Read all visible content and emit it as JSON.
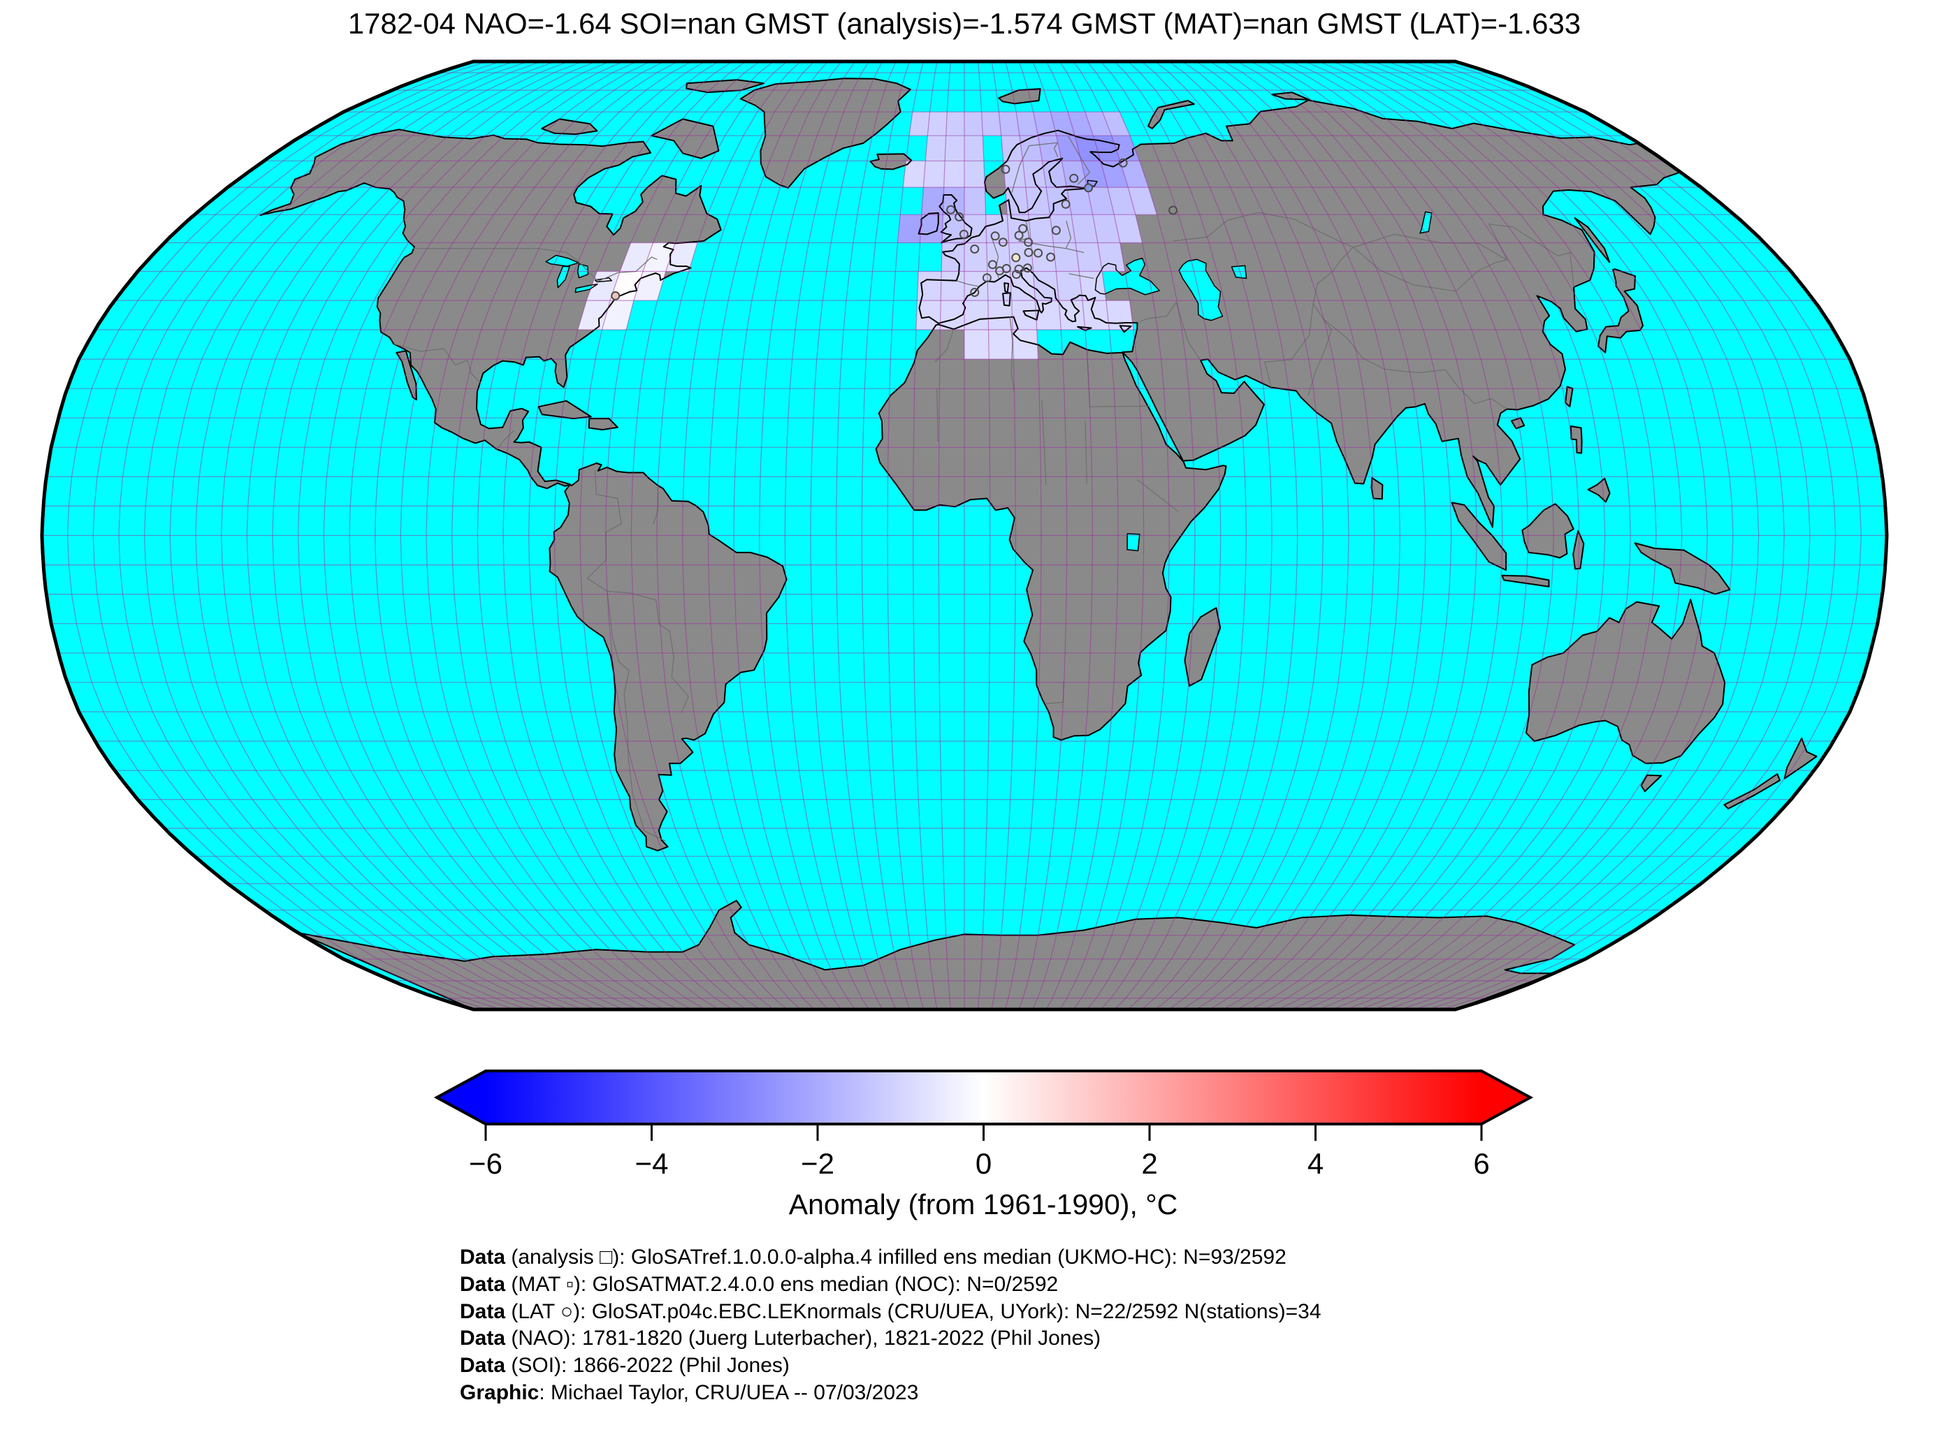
{
  "title": "1782-04 NAO=-1.64 SOI=nan GMST (analysis)=-1.574 GMST (MAT)=nan GMST (LAT)=-1.633",
  "colorbar": {
    "label": "Anomaly (from 1961-1990), °C",
    "vmin": -6,
    "vmax": 6,
    "colormap": "blue-white-red",
    "extend_left_color": "#0000ff",
    "extend_right_color": "#ff0000",
    "ticks": [
      {
        "value": -6,
        "label": "−6"
      },
      {
        "value": -4,
        "label": "−4"
      },
      {
        "value": -2,
        "label": "−2"
      },
      {
        "value": 0,
        "label": "0"
      },
      {
        "value": 2,
        "label": "2"
      },
      {
        "value": 4,
        "label": "4"
      },
      {
        "value": 6,
        "label": "6"
      }
    ]
  },
  "footer": {
    "lines": [
      {
        "label": "Data",
        "text": " (analysis □): GloSATref.1.0.0.0-alpha.4 infilled ens median (UKMO-HC): N=93/2592"
      },
      {
        "label": "Data",
        "text": " (MAT ▫): GloSATMAT.2.4.0.0 ens median (NOC): N=0/2592"
      },
      {
        "label": "Data",
        "text": " (LAT ○): GloSAT.p04c.EBC.LEKnormals (CRU/UEA, UYork): N=22/2592 N(stations)=34"
      },
      {
        "label": "Data",
        "text": " (NAO): 1781-1820 (Juerg Luterbacher), 1821-2022 (Phil Jones)"
      },
      {
        "label": "Data",
        "text": " (SOI): 1866-2022 (Phil Jones)"
      },
      {
        "label": "Graphic",
        "text": ": Michael Taylor, CRU/UEA -- 07/03/2023"
      }
    ]
  },
  "map": {
    "ocean_color": "#00ffff",
    "land_color": "#8a8a8a",
    "coast_color": "#000000",
    "country_border_color": "#6f6f6f",
    "graticule_color": "rgba(155,40,155,0.5)",
    "outline_color": "#000000",
    "grid_step_deg": 5
  },
  "chart_data": {
    "type": "heatmap",
    "projection": "robinson",
    "title": "1782-04 NAO=-1.64 SOI=nan GMST (analysis)=-1.574 GMST (MAT)=nan GMST (LAT)=-1.633",
    "colorbar_label": "Anomaly (from 1961-1990), °C",
    "anomaly_range": [
      -6,
      6
    ],
    "cell_size_deg": 5,
    "cells_format": "[lon_sw, lat_sw, anomaly_value_degC]",
    "cells": [
      [
        -15,
        70,
        -1.1
      ],
      [
        -10,
        70,
        -1.1
      ],
      [
        -5,
        70,
        -1.2
      ],
      [
        0,
        70,
        -1.3
      ],
      [
        5,
        70,
        -1.4
      ],
      [
        10,
        70,
        -1.5
      ],
      [
        15,
        70,
        -1.6
      ],
      [
        20,
        70,
        -1.8
      ],
      [
        25,
        70,
        -2.0
      ],
      [
        30,
        70,
        -2.0
      ],
      [
        35,
        70,
        -1.7
      ],
      [
        40,
        70,
        -1.5
      ],
      [
        -10,
        65,
        -1.1
      ],
      [
        -5,
        65,
        -1.1
      ],
      [
        0,
        65,
        -1.2
      ],
      [
        10,
        65,
        -1.3
      ],
      [
        15,
        65,
        -1.5
      ],
      [
        20,
        65,
        -1.8
      ],
      [
        25,
        65,
        -2.3
      ],
      [
        30,
        65,
        -2.6
      ],
      [
        35,
        65,
        -2.6
      ],
      [
        40,
        65,
        -2.3
      ],
      [
        -15,
        60,
        -0.9
      ],
      [
        -10,
        60,
        -1.0
      ],
      [
        -5,
        60,
        -1.0
      ],
      [
        0,
        60,
        -1.1
      ],
      [
        10,
        60,
        -1.2
      ],
      [
        15,
        60,
        -1.3
      ],
      [
        20,
        60,
        -1.5
      ],
      [
        25,
        60,
        -1.8
      ],
      [
        30,
        60,
        -2.3
      ],
      [
        35,
        60,
        -2.2
      ],
      [
        40,
        60,
        -1.8
      ],
      [
        -10,
        55,
        -2.0
      ],
      [
        -5,
        55,
        -1.8
      ],
      [
        0,
        55,
        -1.4
      ],
      [
        10,
        55,
        -1.3
      ],
      [
        15,
        55,
        -1.3
      ],
      [
        20,
        55,
        -1.4
      ],
      [
        25,
        55,
        -1.5
      ],
      [
        30,
        55,
        -1.5
      ],
      [
        35,
        55,
        -1.4
      ],
      [
        40,
        55,
        -1.3
      ],
      [
        -15,
        50,
        -2.2
      ],
      [
        -10,
        50,
        -2.0
      ],
      [
        -5,
        50,
        -1.4
      ],
      [
        0,
        50,
        -1.2
      ],
      [
        5,
        50,
        -1.2
      ],
      [
        10,
        50,
        -1.2
      ],
      [
        15,
        50,
        -1.2
      ],
      [
        20,
        50,
        -1.3
      ],
      [
        25,
        50,
        -1.3
      ],
      [
        30,
        50,
        -1.3
      ],
      [
        35,
        50,
        -1.2
      ],
      [
        -5,
        45,
        -1.2
      ],
      [
        0,
        45,
        -1.1
      ],
      [
        5,
        45,
        -1.1
      ],
      [
        10,
        45,
        -1.1
      ],
      [
        15,
        45,
        -1.1
      ],
      [
        20,
        45,
        -1.2
      ],
      [
        25,
        45,
        -1.2
      ],
      [
        30,
        45,
        -1.2
      ],
      [
        -10,
        40,
        -1.0
      ],
      [
        -5,
        40,
        -1.0
      ],
      [
        0,
        40,
        -1.0
      ],
      [
        5,
        40,
        -1.0
      ],
      [
        10,
        40,
        -1.0
      ],
      [
        15,
        40,
        -1.1
      ],
      [
        20,
        40,
        -1.1
      ],
      [
        25,
        40,
        -1.0
      ],
      [
        -10,
        35,
        -0.9
      ],
      [
        -5,
        35,
        -0.9
      ],
      [
        0,
        35,
        -0.9
      ],
      [
        5,
        35,
        -0.9
      ],
      [
        10,
        35,
        -0.9
      ],
      [
        15,
        35,
        -0.9
      ],
      [
        20,
        35,
        -0.9
      ],
      [
        25,
        35,
        -0.9
      ],
      [
        30,
        35,
        -0.9
      ],
      [
        0,
        30,
        -0.8
      ],
      [
        5,
        30,
        -0.8
      ],
      [
        10,
        30,
        -0.8
      ],
      [
        -75,
        45,
        -0.5
      ],
      [
        -70,
        45,
        -0.25
      ],
      [
        -65,
        45,
        -0.5
      ],
      [
        -80,
        40,
        -0.55
      ],
      [
        -75,
        40,
        0.05
      ],
      [
        -70,
        40,
        -0.35
      ],
      [
        -80,
        35,
        -0.5
      ],
      [
        -75,
        35,
        -0.3
      ]
    ],
    "stations_format": "[lon, lat, optional_fill_color]",
    "stations": [
      [
        -74.2,
        40.8,
        "#e9c4ba"
      ],
      [
        30.3,
        59.9,
        "#8496e8"
      ],
      [
        11.4,
        47.4,
        "#f4e7cf"
      ],
      [
        10.4,
        63.4
      ],
      [
        27.2,
        61.7
      ],
      [
        24.1,
        56.9
      ],
      [
        49.1,
        55.8
      ],
      [
        40.6,
        64.6
      ],
      [
        -3.2,
        55.9
      ],
      [
        -1.2,
        54.6
      ],
      [
        -0.1,
        51.5
      ],
      [
        13.4,
        52.5
      ],
      [
        21.0,
        52.2
      ],
      [
        2.3,
        48.9
      ],
      [
        7.0,
        51.2
      ],
      [
        8.7,
        50.1
      ],
      [
        12.4,
        51.3
      ],
      [
        14.4,
        50.1
      ],
      [
        16.4,
        48.2
      ],
      [
        19.1,
        47.5
      ],
      [
        14.3,
        48.3
      ],
      [
        6.2,
        46.2
      ],
      [
        7.7,
        45.1
      ],
      [
        9.2,
        45.5
      ],
      [
        11.9,
        45.4
      ],
      [
        11.3,
        44.5
      ],
      [
        13.8,
        45.6
      ],
      [
        2.2,
        41.4
      ],
      [
        4.9,
        43.9
      ]
    ]
  }
}
